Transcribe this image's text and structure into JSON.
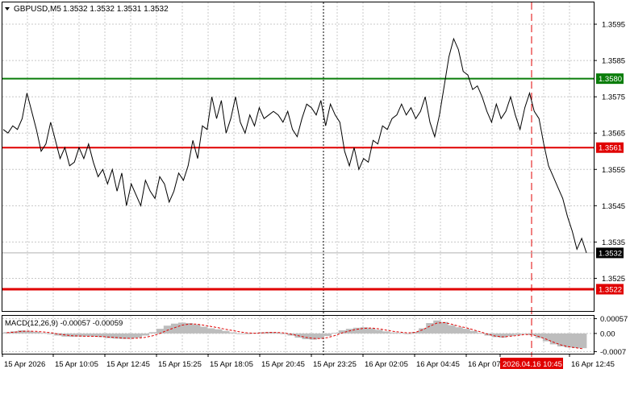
{
  "header": {
    "symbol_text": "GBPUSD,M5",
    "ohlc_text": "1.3532 1.3532 1.3531 1.3532"
  },
  "macd": {
    "label": "MACD(12,26,9) -0.00057 -0.00059"
  },
  "colors": {
    "price_line": "#000000",
    "grid": "#c8c8c8",
    "green_level": "#0a7d0a",
    "red_level": "#e00000",
    "current_price_label": "#000000",
    "histogram": "#bdbdbd",
    "signal": "#e00000",
    "marker_label_bg": "#e00000"
  },
  "chart_data": [
    {
      "type": "line",
      "title": "",
      "yscale": {
        "min": 1.3516,
        "max": 1.3601
      },
      "price_axis_ticks": [
        "1.3595",
        "1.3585",
        "1.3575",
        "1.3565",
        "1.3555",
        "1.3545",
        "1.3535",
        "1.3525"
      ],
      "price_axis_values": [
        1.3595,
        1.3585,
        1.3575,
        1.3565,
        1.3555,
        1.3545,
        1.3535,
        1.3525
      ],
      "levels": [
        {
          "name": "resistance",
          "value": 1.358,
          "label": "1.3580",
          "color": "#0a7d0a"
        },
        {
          "name": "pivot",
          "value": 1.3561,
          "label": "1.3561",
          "color": "#e00000"
        },
        {
          "name": "support",
          "value": 1.3522,
          "label": "1.3522",
          "color": "#e00000"
        }
      ],
      "current_price": {
        "value": 1.3532,
        "label": "1.3532"
      },
      "series": [
        {
          "values": [
            1.3566,
            1.3565,
            1.3567,
            1.3566,
            1.3569,
            1.3576,
            1.3571,
            1.3566,
            1.356,
            1.3562,
            1.3568,
            1.3563,
            1.3558,
            1.3561,
            1.3556,
            1.3557,
            1.3561,
            1.3558,
            1.3562,
            1.3557,
            1.3553,
            1.3555,
            1.3551,
            1.3555,
            1.3549,
            1.3554,
            1.3545,
            1.3551,
            1.3548,
            1.3545,
            1.3552,
            1.3549,
            1.3547,
            1.3553,
            1.3551,
            1.3546,
            1.3549,
            1.3554,
            1.3552,
            1.3556,
            1.3563,
            1.3558,
            1.3567,
            1.3566,
            1.3575,
            1.3569,
            1.3574,
            1.3565,
            1.3569,
            1.3575,
            1.3568,
            1.3565,
            1.357,
            1.3567,
            1.3572,
            1.3569,
            1.357,
            1.3571,
            1.357,
            1.3568,
            1.3571,
            1.3566,
            1.3564,
            1.3569,
            1.3573,
            1.3572,
            1.357,
            1.3574,
            1.3567,
            1.3573,
            1.357,
            1.3568,
            1.356,
            1.3556,
            1.3561,
            1.3555,
            1.3558,
            1.3557,
            1.3563,
            1.3562,
            1.3567,
            1.3566,
            1.3569,
            1.357,
            1.3573,
            1.357,
            1.3572,
            1.3569,
            1.3571,
            1.3575,
            1.3568,
            1.3564,
            1.357,
            1.3578,
            1.3586,
            1.3591,
            1.3588,
            1.3582,
            1.3581,
            1.3577,
            1.3578,
            1.3575,
            1.3571,
            1.3568,
            1.3573,
            1.3569,
            1.3571,
            1.3575,
            1.357,
            1.3566,
            1.3572,
            1.3576,
            1.3571,
            1.3569,
            1.3562,
            1.3556,
            1.3553,
            1.355,
            1.3547,
            1.3542,
            1.3538,
            1.3533,
            1.3536,
            1.3532
          ]
        }
      ],
      "time_axis_labels": [
        "15 Apr 2026",
        "15 Apr 10:05",
        "15 Apr 12:45",
        "15 Apr 15:25",
        "15 Apr 18:05",
        "15 Apr 20:45",
        "15 Apr 23:25",
        "16 Apr 02:05",
        "16 Apr 04:45",
        "16 Apr 07",
        "2026.04.16 10:45",
        "16 Apr 12:45"
      ],
      "highlighted_time_label": "2026.04.16 10:45",
      "vertical_markers": [
        {
          "name": "day-separator",
          "style": "dotted",
          "color": "#000000",
          "at_label": "15 Apr 23:25"
        },
        {
          "name": "event-marker",
          "style": "dashed",
          "color": "#e00000",
          "at_label": "2026.04.16 10:45"
        }
      ],
      "grid": true
    },
    {
      "type": "bar",
      "title": "MACD(12,26,9) -0.00057 -0.00059",
      "yscale": {
        "min": -0.00078,
        "max": 0.00068
      },
      "axis_ticks": [
        "0.00057",
        "0.00",
        "-0.0007"
      ],
      "axis_values": [
        0.00057,
        0.0,
        -0.0007
      ],
      "series": [
        {
          "name": "MACD",
          "values": [
            5e-05,
            8e-05,
            0.00012,
            0.0001,
            6e-05,
            2e-05,
            -3e-05,
            -8e-05,
            -0.00012,
            -0.00013,
            -0.00012,
            -0.00011,
            -0.00012,
            -0.00014,
            -0.00018,
            -0.0002,
            -0.00021,
            -0.0002,
            -0.00016,
            -8e-05,
            5e-05,
            0.00018,
            0.0003,
            0.00038,
            0.00042,
            0.0004,
            0.00034,
            0.00026,
            0.0002,
            0.00016,
            0.0001,
            4e-05,
            0.0,
            -2e-05,
            2e-05,
            5e-05,
            6e-05,
            4e-05,
            0.0,
            -8e-05,
            -0.00016,
            -0.00022,
            -0.00024,
            -0.0002,
            -0.0001,
            2e-05,
            0.00012,
            0.00018,
            0.00022,
            0.00024,
            0.0002,
            0.00014,
            8e-05,
            4e-05,
            2e-05,
            0.0,
            6e-05,
            0.0002,
            0.0004,
            0.0005,
            0.00044,
            0.00032,
            0.00024,
            0.00018,
            0.0001,
            2e-05,
            -8e-05,
            -0.00014,
            -0.00016,
            -0.0001,
            -6e-05,
            -2e-05,
            -6e-05,
            -0.00018,
            -0.0003,
            -0.00042,
            -0.0005,
            -0.00054,
            -0.00056,
            -0.00057
          ]
        },
        {
          "name": "Signal",
          "values": [
            3e-05,
            5e-05,
            8e-05,
            9e-05,
            8e-05,
            6e-05,
            3e-05,
            -2e-05,
            -6e-05,
            -9e-05,
            -0.0001,
            -0.00011,
            -0.00011,
            -0.00012,
            -0.00014,
            -0.00016,
            -0.00018,
            -0.00019,
            -0.00018,
            -0.00015,
            -9e-05,
            0.0,
            0.00012,
            0.00022,
            0.00032,
            0.00036,
            0.00036,
            0.00032,
            0.00027,
            0.00022,
            0.00016,
            0.00011,
            6e-05,
            2e-05,
            1e-05,
            2e-05,
            4e-05,
            4e-05,
            2e-05,
            -3e-05,
            -9e-05,
            -0.00015,
            -0.00019,
            -0.0002,
            -0.00016,
            -8e-05,
            2e-05,
            0.0001,
            0.00016,
            0.0002,
            0.00021,
            0.00018,
            0.00013,
            8e-05,
            5e-05,
            2e-05,
            4e-05,
            0.00014,
            0.00028,
            0.0004,
            0.00042,
            0.00036,
            0.00028,
            0.00022,
            0.00014,
            6e-05,
            -3e-05,
            -0.0001,
            -0.00013,
            -0.00011,
            -8e-05,
            -4e-05,
            -4e-05,
            -0.00012,
            -0.00022,
            -0.00034,
            -0.00044,
            -0.00051,
            -0.00055,
            -0.00059
          ]
        }
      ]
    }
  ]
}
